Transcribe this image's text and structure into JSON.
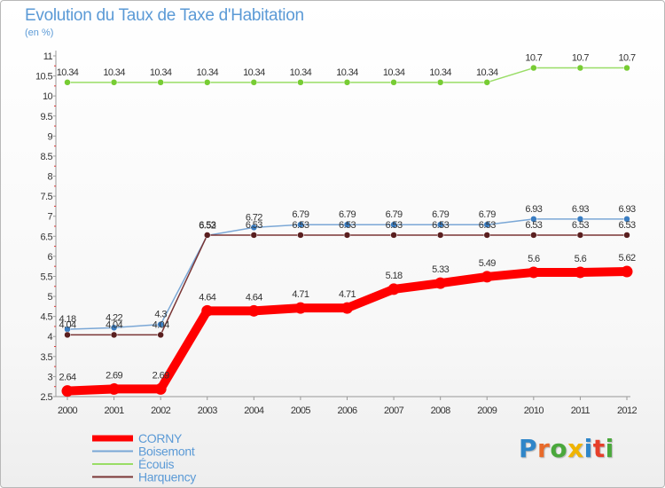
{
  "title": "Evolution du Taux de Taxe d'Habitation",
  "subtitle": "(en %)",
  "logo": {
    "text": "Proxiti",
    "letter_colors": [
      "#2f86c9",
      "#e86a2a",
      "#4aa83c",
      "#f0b400",
      "#2f86c9",
      "#e63f2a",
      "#4aa83c"
    ]
  },
  "chart_data": {
    "type": "line",
    "title": "Evolution du Taux de Taxe d'Habitation",
    "ylabel": "(en %)",
    "xlabel": "",
    "x": [
      "2000",
      "2001",
      "2002",
      "2003",
      "2004",
      "2005",
      "2006",
      "2007",
      "2008",
      "2009",
      "2010",
      "2011",
      "2012"
    ],
    "ylim": [
      2.5,
      11
    ],
    "yticks": [
      {
        "value": 2.5,
        "label": "2.5"
      },
      {
        "value": 3,
        "label": "3"
      },
      {
        "value": 3.5,
        "label": "3.5"
      },
      {
        "value": 4,
        "label": "4"
      },
      {
        "value": 4.5,
        "label": "4.5"
      },
      {
        "value": 5,
        "label": "5"
      },
      {
        "value": 5.5,
        "label": "5.5"
      },
      {
        "value": 6,
        "label": "6"
      },
      {
        "value": 6.5,
        "label": "6.5"
      },
      {
        "value": 7,
        "label": "7"
      },
      {
        "value": 7.5,
        "label": "7.5"
      },
      {
        "value": 8,
        "label": "8"
      },
      {
        "value": 8.5,
        "label": "8.5"
      },
      {
        "value": 9,
        "label": "9"
      },
      {
        "value": 9.5,
        "label": "9.5"
      },
      {
        "value": 10,
        "label": "10"
      },
      {
        "value": 10.5,
        "label": "10.5"
      },
      {
        "value": 11,
        "label": "11"
      }
    ],
    "grid": false,
    "legend_position": "bottom-left",
    "series": [
      {
        "name": "CORNY",
        "color": "#ff0000",
        "marker_color": "#ff0000",
        "emphasis": "thick",
        "values": [
          2.64,
          2.69,
          2.69,
          4.64,
          4.64,
          4.71,
          4.71,
          5.18,
          5.33,
          5.49,
          5.6,
          5.6,
          5.62
        ],
        "labels": [
          "2.64",
          "2.69",
          "2.69",
          "4.64",
          "4.64",
          "4.71",
          "4.71",
          "5.18",
          "5.33",
          "5.49",
          "5.6",
          "5.6",
          "5.62"
        ]
      },
      {
        "name": "Boisemont",
        "color": "#7aa7d6",
        "marker_color": "#3a7dc2",
        "emphasis": "thin",
        "values": [
          4.18,
          4.22,
          4.3,
          6.52,
          6.72,
          6.79,
          6.79,
          6.79,
          6.79,
          6.79,
          6.93,
          6.93,
          6.93
        ],
        "labels": [
          "4.18",
          "4.22",
          "4.3",
          "6.52",
          "6.72",
          "6.79",
          "6.79",
          "6.79",
          "6.79",
          "6.79",
          "6.93",
          "6.93",
          "6.93"
        ]
      },
      {
        "name": "Écouis",
        "color": "#99dd66",
        "marker_color": "#77cc33",
        "emphasis": "thin",
        "values": [
          10.34,
          10.34,
          10.34,
          10.34,
          10.34,
          10.34,
          10.34,
          10.34,
          10.34,
          10.34,
          10.7,
          10.7,
          10.7
        ],
        "labels": [
          "10.34",
          "10.34",
          "10.34",
          "10.34",
          "10.34",
          "10.34",
          "10.34",
          "10.34",
          "10.34",
          "10.34",
          "10.7",
          "10.7",
          "10.7"
        ]
      },
      {
        "name": "Harquency",
        "color": "#7a3535",
        "marker_color": "#5a1f1f",
        "emphasis": "thin",
        "values": [
          4.04,
          4.04,
          4.04,
          6.53,
          6.53,
          6.53,
          6.53,
          6.53,
          6.53,
          6.53,
          6.53,
          6.53,
          6.53
        ],
        "labels": [
          "4.04",
          "4.04",
          "4.04",
          "6.53",
          "6.53",
          "6.53",
          "6.53",
          "6.53",
          "6.53",
          "6.53",
          "6.53",
          "6.53",
          "6.53"
        ]
      }
    ]
  }
}
